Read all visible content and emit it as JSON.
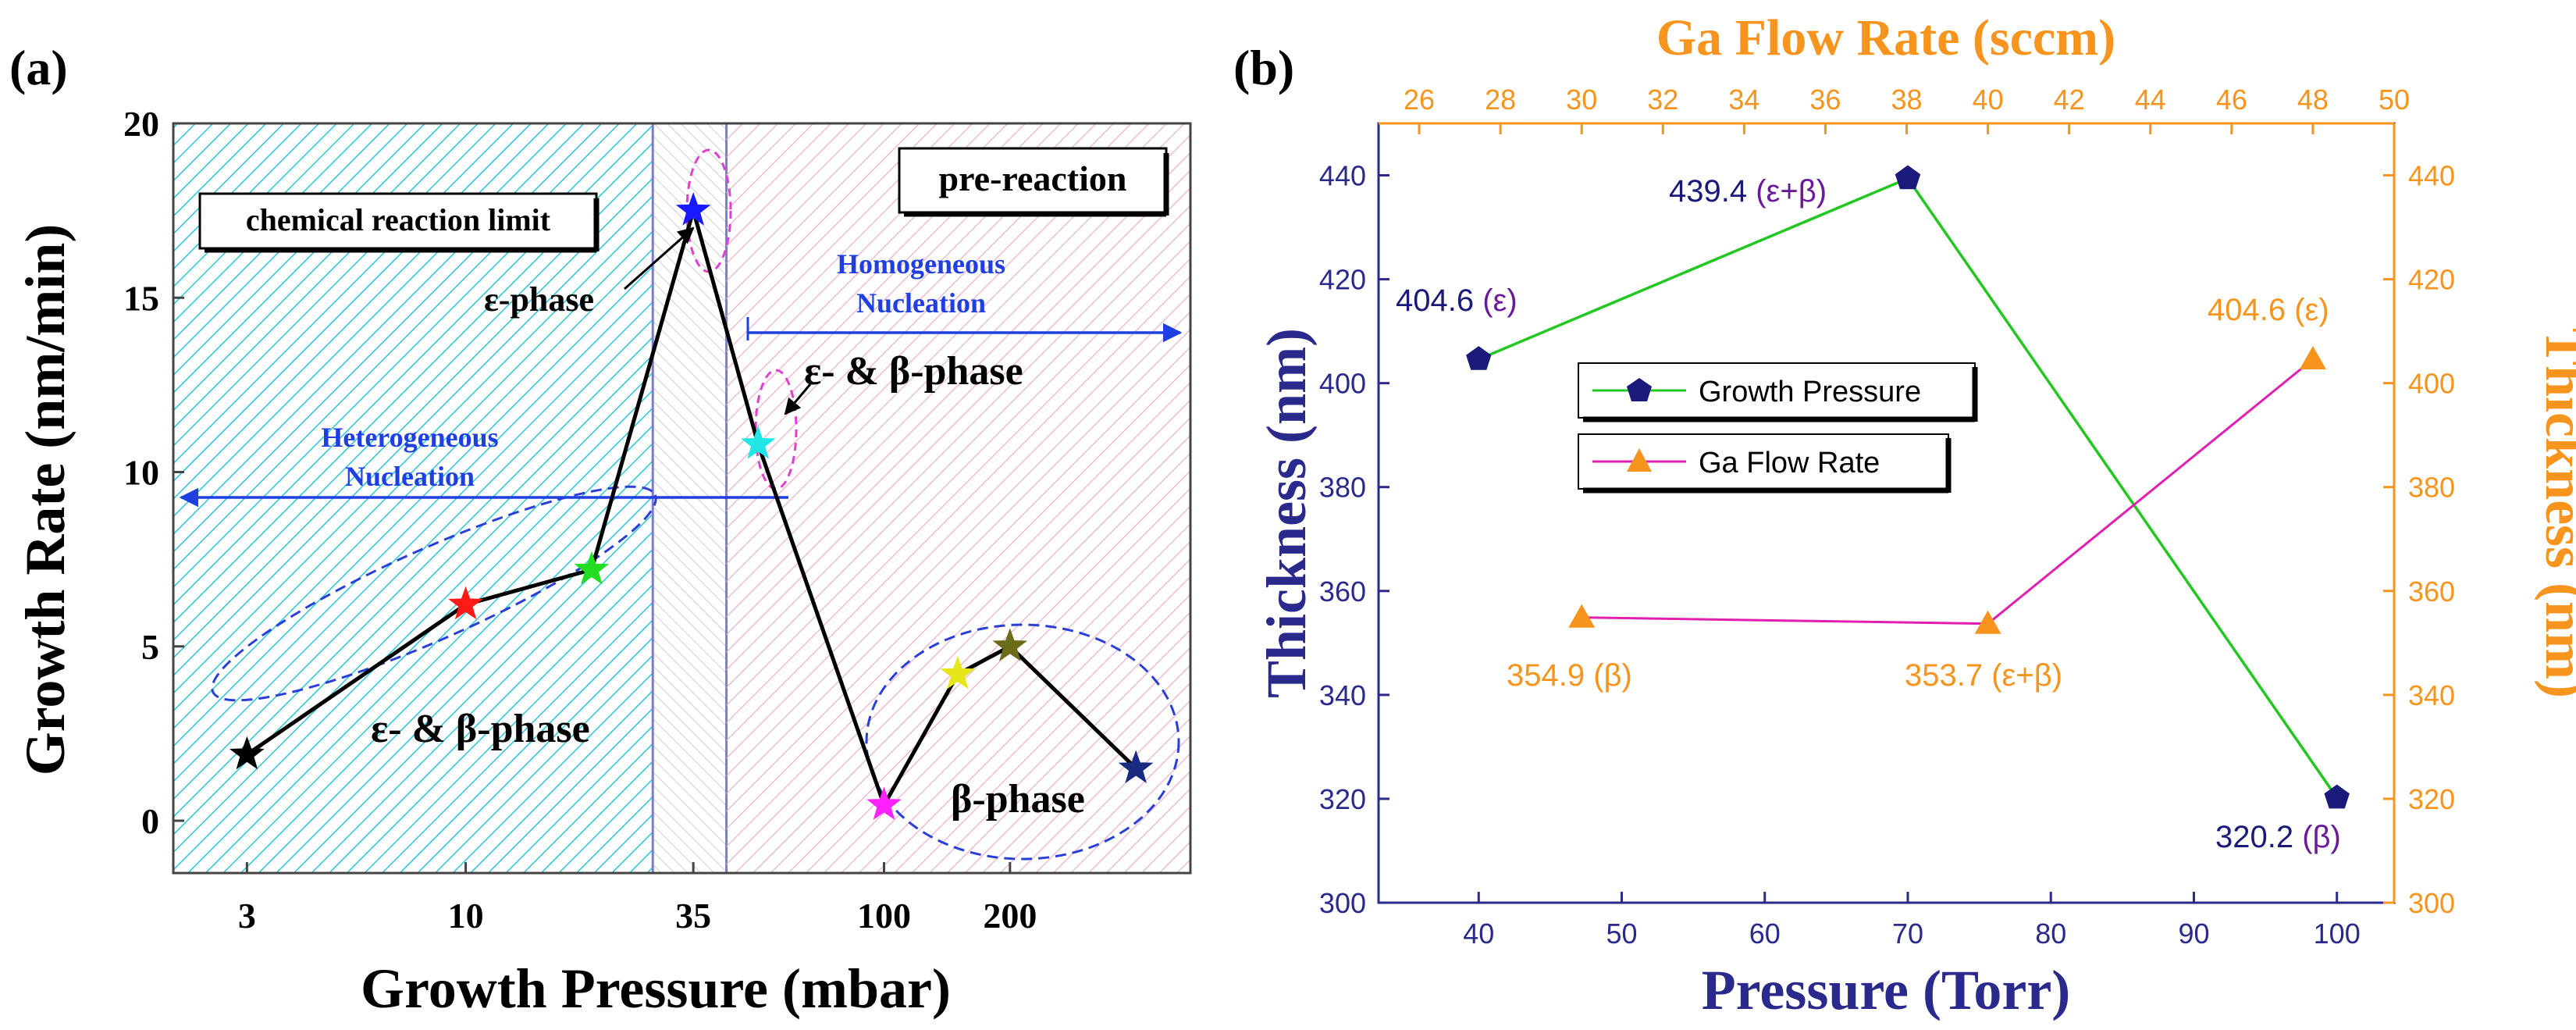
{
  "chart_data": [
    {
      "panel_label": "(a)",
      "type": "line",
      "xlabel": "Growth Pressure (mbar)",
      "ylabel": "Growth Rate (nm/min)",
      "xscale": "log",
      "x_ticks": [
        3,
        10,
        35,
        100,
        200
      ],
      "x_tick_labels": [
        "3",
        "10",
        "35",
        "100",
        "200"
      ],
      "ylim": [
        -1.5,
        20
      ],
      "y_ticks": [
        0,
        5,
        10,
        15,
        20
      ],
      "y_tick_labels": [
        "0",
        "5",
        "10",
        "15",
        "20"
      ],
      "series": [
        {
          "name": "Growth Rate",
          "points": [
            {
              "x": 3,
              "y": 1.9,
              "color": "#000000"
            },
            {
              "x": 10,
              "y": 6.2,
              "color": "#ff1a1a"
            },
            {
              "x": 20,
              "y": 7.2,
              "color": "#22dd22"
            },
            {
              "x": 35,
              "y": 17.5,
              "color": "#1a1aff"
            },
            {
              "x": 50,
              "y": 10.8,
              "color": "#22e5e5"
            },
            {
              "x": 100,
              "y": 0.45,
              "color": "#ff22ff"
            },
            {
              "x": 150,
              "y": 4.2,
              "color": "#e6e61a"
            },
            {
              "x": 200,
              "y": 5.0,
              "color": "#6b6b1a"
            },
            {
              "x": 400,
              "y": 1.5,
              "color": "#1a2a80"
            }
          ]
        }
      ],
      "regions": {
        "heterogeneous_end": 28,
        "epsilon_band": [
          28,
          42
        ],
        "homogeneous_start": 42
      },
      "annotations": {
        "chemical_limit": "chemical reaction limit",
        "pre_reaction": "pre-reaction",
        "heterogeneous_line1": "Heterogeneous",
        "heterogeneous_line2": "Nucleation",
        "homogeneous_line1": "Homogeneous",
        "homogeneous_line2": "Nucleation",
        "epsilon_phase": "ε-phase",
        "eps_beta_top": "ε- & β-phase",
        "eps_beta_bottom": "ε- & β-phase",
        "beta_phase": "β-phase"
      },
      "colors": {
        "heterogeneous_hatch": "#29c6d8",
        "homogeneous_hatch": "#e8a6c6",
        "arrow": "#1f3fe0",
        "ellipse": "#2a3fd8",
        "small_ellipse": "#e040d0",
        "band_border": "#7a7ad8"
      }
    },
    {
      "panel_label": "(b)",
      "type": "line",
      "xlabel": "Pressure (Torr)",
      "ylabel": "Thickness (nm)",
      "x2label": "Ga Flow Rate (sccm)",
      "y2label": "Thickness (nm)",
      "xlim": [
        33,
        104
      ],
      "ylim": [
        300,
        450
      ],
      "x_ticks": [
        40,
        50,
        60,
        70,
        80,
        90,
        100
      ],
      "y_ticks": [
        300,
        320,
        340,
        360,
        380,
        400,
        420,
        440
      ],
      "x2lim": [
        25,
        50
      ],
      "x2_ticks": [
        26,
        28,
        30,
        32,
        34,
        36,
        38,
        40,
        42,
        44,
        46,
        48,
        50
      ],
      "y2lim": [
        300,
        450
      ],
      "y2_ticks": [
        300,
        320,
        340,
        360,
        380,
        400,
        420,
        440
      ],
      "series": [
        {
          "name": "Growth Pressure",
          "axis": "bottom-left",
          "x": [
            40,
            70,
            100
          ],
          "y": [
            404.6,
            439.4,
            320.2
          ],
          "labels": [
            "404.6",
            "439.4",
            "320.2"
          ],
          "phases": [
            "(ε)",
            "(ε+β)",
            "(β)"
          ],
          "line_color": "#22c722",
          "marker_color": "#1a1a7a"
        },
        {
          "name": "Ga Flow Rate",
          "axis": "top-right",
          "x": [
            30,
            40,
            48
          ],
          "y": [
            354.9,
            353.7,
            404.6
          ],
          "labels": [
            "354.9",
            "353.7",
            "404.6"
          ],
          "phases": [
            "(β)",
            "(ε+β)",
            "(ε)"
          ],
          "line_color": "#e020b0",
          "marker_color": "#f7941d"
        }
      ],
      "legend": [
        "Growth Pressure",
        "Ga Flow Rate"
      ],
      "colors": {
        "left_axis": "#2a2a8c",
        "right_axis": "#f7941d",
        "phase_purple": "#6a1b9a",
        "label_blue": "#1a1a7a"
      }
    }
  ]
}
